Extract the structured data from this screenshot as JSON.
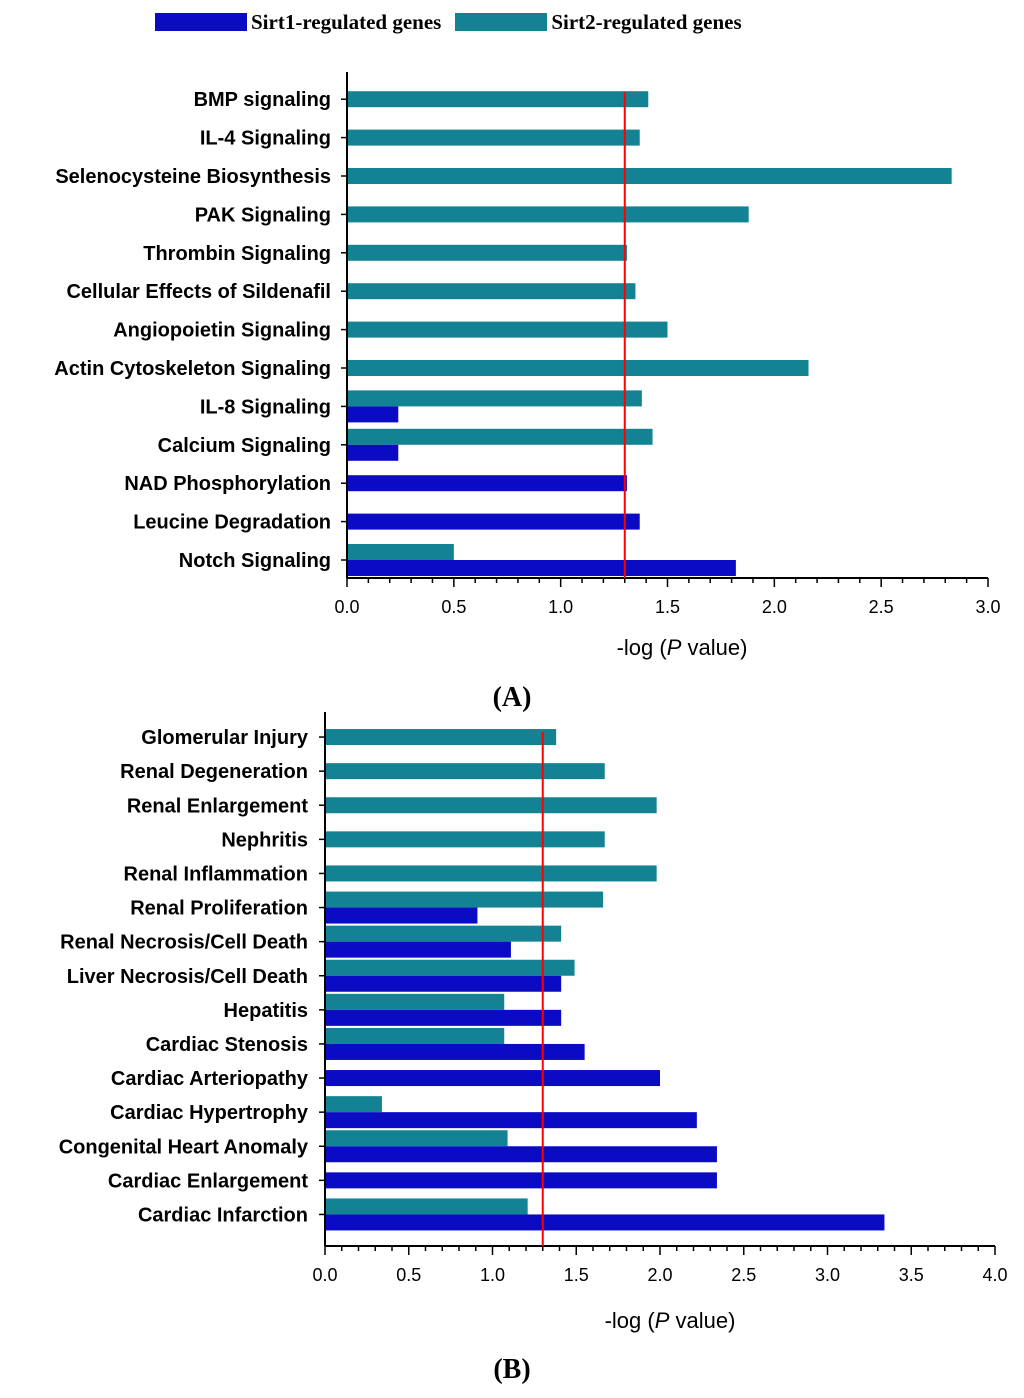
{
  "legend": {
    "sirt1_label": "Sirt1-regulated genes",
    "sirt2_label": "Sirt2-regulated genes"
  },
  "colors": {
    "sirt1": "#0b0bc4",
    "sirt2": "#138393",
    "threshold": "#ff0000"
  },
  "chart_data": [
    {
      "type": "bar",
      "orientation": "horizontal",
      "panel_label": "(A)",
      "xlabel": "-log (P value)",
      "xlim": [
        0,
        3.0
      ],
      "xticks": [
        "0.0",
        "0.5",
        "1.0",
        "1.5",
        "2.0",
        "2.5",
        "3.0"
      ],
      "threshold": 1.3,
      "categories": [
        "BMP signaling",
        "IL-4 Signaling",
        "Selenocysteine Biosynthesis",
        "PAK Signaling",
        "Thrombin Signaling",
        "Cellular Effects of Sildenafil",
        "Angiopoietin Signaling",
        "Actin Cytoskeleton Signaling",
        "IL-8 Signaling",
        "Calcium Signaling",
        "NAD Phosphorylation",
        "Leucine Degradation",
        "Notch Signaling"
      ],
      "series": [
        {
          "name": "Sirt2-regulated genes",
          "values": [
            1.41,
            1.37,
            2.83,
            1.88,
            1.31,
            1.35,
            1.5,
            2.16,
            1.38,
            1.43,
            null,
            null,
            0.5
          ]
        },
        {
          "name": "Sirt1-regulated genes",
          "values": [
            null,
            null,
            null,
            null,
            null,
            null,
            null,
            null,
            0.24,
            0.24,
            1.31,
            1.37,
            1.82
          ]
        }
      ]
    },
    {
      "type": "bar",
      "orientation": "horizontal",
      "panel_label": "(B)",
      "xlabel": "-log (P value)",
      "xlim": [
        0,
        4.0
      ],
      "xticks": [
        "0.0",
        "0.5",
        "1.0",
        "1.5",
        "2.0",
        "2.5",
        "3.0",
        "3.5",
        "4.0"
      ],
      "threshold": 1.3,
      "categories": [
        "Glomerular Injury",
        "Renal Degeneration",
        "Renal Enlargement",
        "Nephritis",
        "Renal Inflammation",
        "Renal Proliferation",
        "Renal Necrosis/Cell Death",
        "Liver Necrosis/Cell Death",
        "Hepatitis",
        "Cardiac Stenosis",
        "Cardiac Arteriopathy",
        "Cardiac Hypertrophy",
        "Congenital Heart Anomaly",
        "Cardiac Enlargement",
        "Cardiac Infarction"
      ],
      "series": [
        {
          "name": "Sirt2-regulated genes",
          "values": [
            1.38,
            1.67,
            1.98,
            1.67,
            1.98,
            1.66,
            1.41,
            1.49,
            1.07,
            1.07,
            null,
            0.34,
            1.09,
            null,
            1.21
          ]
        },
        {
          "name": "Sirt1-regulated genes",
          "values": [
            null,
            null,
            null,
            null,
            null,
            0.91,
            1.11,
            1.41,
            1.41,
            1.55,
            2.0,
            2.22,
            2.34,
            2.34,
            3.34
          ]
        }
      ]
    }
  ]
}
